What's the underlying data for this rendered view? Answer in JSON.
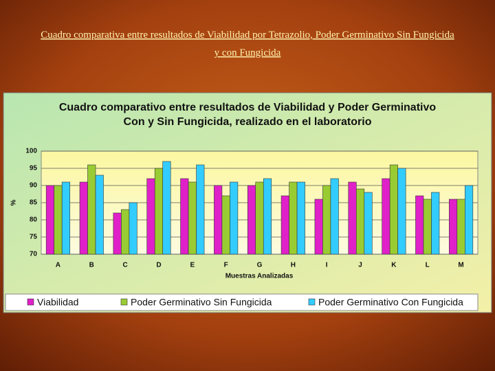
{
  "slide_title": "Cuadro comparativa entre resultados de Viabilidad por Tetrazolio, Poder Germinativo Sin Fungicida y con Fungicida",
  "chart_data": {
    "type": "bar",
    "title": "Cuadro comparativo entre resultados de Viabilidad y Poder Germinativo Con y Sin Fungicida, realizado en el laboratorio",
    "x_label": "Muestras Analizadas",
    "y_label": "%",
    "categories": [
      "A",
      "B",
      "C",
      "D",
      "E",
      "F",
      "G",
      "H",
      "I",
      "J",
      "K",
      "L",
      "M"
    ],
    "series": [
      {
        "name": "Viabilidad",
        "color": "#e020c8",
        "values": [
          90,
          91,
          82,
          92,
          92,
          90,
          90,
          87,
          86,
          91,
          92,
          87,
          86
        ]
      },
      {
        "name": "Poder Germinativo Sin Fungicida",
        "color": "#99cc33",
        "values": [
          90,
          96,
          83,
          95,
          91,
          87,
          91,
          91,
          90,
          89,
          96,
          86,
          86
        ]
      },
      {
        "name": "Poder Germinativo Con Fungicida",
        "color": "#33ccff",
        "values": [
          91,
          93,
          85,
          97,
          96,
          91,
          92,
          91,
          92,
          88,
          95,
          88,
          90
        ]
      }
    ],
    "ylim": [
      70,
      100
    ],
    "yticks": [
      70,
      75,
      80,
      85,
      90,
      95,
      100
    ],
    "grid": true,
    "legend": "bottom"
  }
}
